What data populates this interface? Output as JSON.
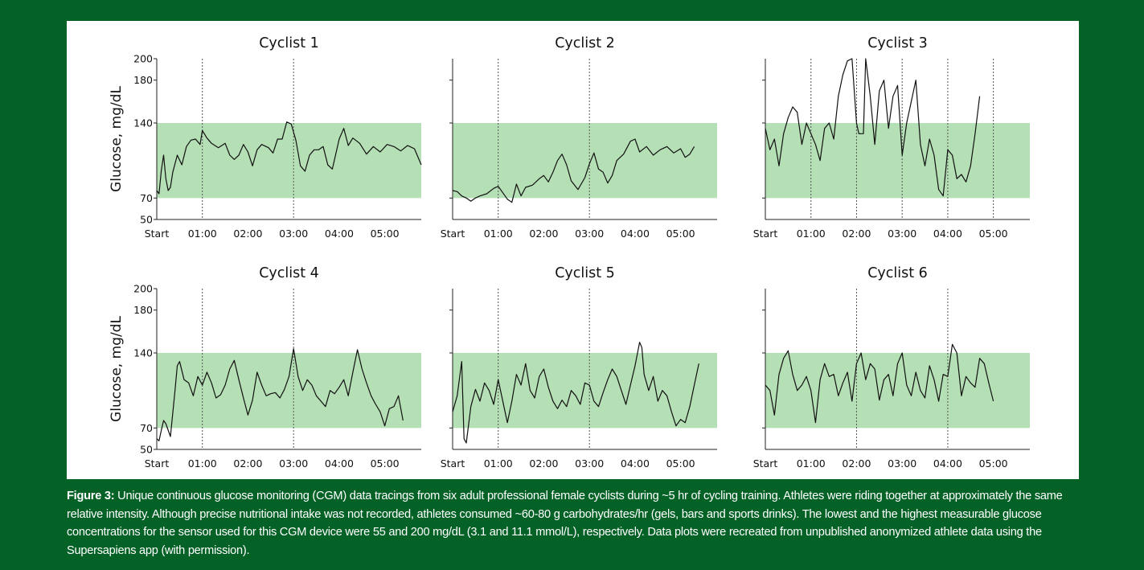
{
  "caption": {
    "label": "Figure 3:",
    "text": " Unique continuous glucose monitoring (CGM) data tracings from six adult professional female cyclists during ~5 hr of cycling training. Athletes were riding together at approximately the same relative intensity. Although precise nutritional intake was not recorded, athletes consumed ~60-80 g carbohydrates/hr (gels, bars and sports drinks). The lowest and the highest measurable glucose concentrations for the sensor used for this CGM device were 55 and 200 mg/dL (3.1 and 11.1 mmol/L), respectively. Data plots were recreated from unpublished anonymized athlete data using the Supersapiens app (with permission)."
  },
  "colors": {
    "background": "#046227",
    "panel": "#ffffff",
    "target_band": "#b5dfb5",
    "trace": "#111111"
  },
  "chart_data": [
    {
      "type": "line",
      "title": "Cyclist 1",
      "ylabel": "Glucose, mg/dL",
      "yticks": [
        50,
        70,
        140,
        180,
        200
      ],
      "ylim": [
        50,
        200
      ],
      "xlim": [
        0,
        5.8
      ],
      "xticks": [
        0,
        1,
        2,
        3,
        4,
        5
      ],
      "xtick_labels": [
        "Start",
        "01:00",
        "02:00",
        "03:00",
        "04:00",
        "05:00"
      ],
      "target_range": [
        70,
        140
      ],
      "gridlines_x": [
        1,
        3
      ],
      "series": [
        {
          "x": [
            0,
            0.05,
            0.1,
            0.15,
            0.2,
            0.25,
            0.3,
            0.35,
            0.45,
            0.55,
            0.65,
            0.75,
            0.85,
            0.95,
            1.0,
            1.1,
            1.2,
            1.35,
            1.5,
            1.6,
            1.7,
            1.8,
            1.9,
            2.0,
            2.1,
            2.2,
            2.3,
            2.45,
            2.55,
            2.65,
            2.75,
            2.85,
            2.95,
            3.05,
            3.15,
            3.25,
            3.35,
            3.45,
            3.55,
            3.65,
            3.75,
            3.85,
            4.0,
            4.1,
            4.2,
            4.3,
            4.45,
            4.6,
            4.75,
            4.9,
            5.05,
            5.2,
            5.35,
            5.5,
            5.65,
            5.8
          ],
          "y": [
            77,
            74,
            96,
            110,
            88,
            77,
            80,
            94,
            110,
            101,
            118,
            124,
            125,
            120,
            133,
            126,
            121,
            117,
            121,
            110,
            106,
            110,
            120,
            113,
            100,
            115,
            120,
            117,
            112,
            125,
            125,
            141,
            139,
            124,
            100,
            95,
            110,
            115,
            115,
            118,
            101,
            97,
            125,
            135,
            119,
            126,
            121,
            111,
            118,
            113,
            120,
            118,
            114,
            119,
            116,
            101
          ]
        }
      ]
    },
    {
      "type": "line",
      "title": "Cyclist 2",
      "ylim": [
        50,
        200
      ],
      "xlim": [
        0,
        5.8
      ],
      "xticks": [
        0,
        1,
        2,
        3,
        4,
        5
      ],
      "xtick_labels": [
        "Start",
        "01:00",
        "02:00",
        "03:00",
        "04:00",
        "05:00"
      ],
      "target_range": [
        70,
        140
      ],
      "gridlines_x": [
        1,
        3
      ],
      "series": [
        {
          "x": [
            0,
            0.1,
            0.2,
            0.3,
            0.4,
            0.5,
            0.6,
            0.75,
            0.9,
            1.0,
            1.1,
            1.2,
            1.3,
            1.4,
            1.5,
            1.6,
            1.75,
            1.9,
            2.0,
            2.1,
            2.2,
            2.3,
            2.4,
            2.5,
            2.6,
            2.75,
            2.9,
            3.0,
            3.1,
            3.2,
            3.3,
            3.4,
            3.5,
            3.6,
            3.75,
            3.9,
            4.0,
            4.1,
            4.25,
            4.4,
            4.55,
            4.7,
            4.85,
            5.0,
            5.1,
            5.2,
            5.3
          ],
          "y": [
            77,
            76,
            72,
            70,
            67,
            70,
            72,
            74,
            79,
            81,
            75,
            69,
            66,
            83,
            72,
            80,
            82,
            88,
            91,
            85,
            94,
            105,
            111,
            101,
            86,
            78,
            89,
            102,
            112,
            97,
            94,
            84,
            91,
            105,
            111,
            123,
            125,
            113,
            118,
            110,
            115,
            118,
            112,
            116,
            108,
            111,
            118
          ]
        }
      ]
    },
    {
      "type": "line",
      "title": "Cyclist 3",
      "ylim": [
        50,
        200
      ],
      "xlim": [
        0,
        5.8
      ],
      "xticks": [
        0,
        1,
        2,
        3,
        4,
        5
      ],
      "xtick_labels": [
        "Start",
        "01:00",
        "02:00",
        "03:00",
        "04:00",
        "05:00"
      ],
      "target_range": [
        70,
        140
      ],
      "gridlines_x": [
        1,
        2,
        3,
        4,
        5
      ],
      "series": [
        {
          "x": [
            0,
            0.1,
            0.2,
            0.3,
            0.4,
            0.5,
            0.6,
            0.7,
            0.8,
            0.9,
            1.0,
            1.1,
            1.2,
            1.3,
            1.4,
            1.5,
            1.6,
            1.7,
            1.8,
            1.9,
            2.0,
            2.05,
            2.15,
            2.2,
            2.3,
            2.4,
            2.5,
            2.6,
            2.7,
            2.8,
            2.9,
            3.0,
            3.1,
            3.2,
            3.3,
            3.4,
            3.5,
            3.6,
            3.7,
            3.8,
            3.9,
            4.0,
            4.1,
            4.2,
            4.3,
            4.4,
            4.5,
            4.6,
            4.7
          ],
          "y": [
            135,
            115,
            125,
            100,
            130,
            145,
            155,
            150,
            120,
            140,
            130,
            120,
            105,
            135,
            140,
            125,
            165,
            185,
            198,
            200,
            140,
            130,
            130,
            200,
            165,
            120,
            170,
            180,
            135,
            165,
            175,
            110,
            140,
            160,
            180,
            120,
            100,
            125,
            110,
            78,
            72,
            115,
            110,
            88,
            92,
            85,
            100,
            130,
            165
          ]
        }
      ]
    },
    {
      "type": "line",
      "title": "Cyclist 4",
      "ylabel": "Glucose, mg/dL",
      "yticks": [
        50,
        70,
        140,
        180,
        200
      ],
      "ylim": [
        50,
        200
      ],
      "xlim": [
        0,
        5.8
      ],
      "xticks": [
        0,
        1,
        2,
        3,
        4,
        5
      ],
      "xtick_labels": [
        "Start",
        "01:00",
        "02:00",
        "03:00",
        "04:00",
        "05:00"
      ],
      "target_range": [
        70,
        140
      ],
      "gridlines_x": [
        1,
        3
      ],
      "series": [
        {
          "x": [
            0,
            0.05,
            0.1,
            0.15,
            0.2,
            0.3,
            0.4,
            0.45,
            0.5,
            0.6,
            0.7,
            0.8,
            0.9,
            1.0,
            1.1,
            1.2,
            1.3,
            1.4,
            1.5,
            1.6,
            1.7,
            1.8,
            1.9,
            2.0,
            2.1,
            2.2,
            2.3,
            2.4,
            2.5,
            2.6,
            2.7,
            2.8,
            2.9,
            3.0,
            3.1,
            3.2,
            3.3,
            3.4,
            3.5,
            3.6,
            3.7,
            3.8,
            3.9,
            4.0,
            4.1,
            4.2,
            4.3,
            4.4,
            4.5,
            4.6,
            4.7,
            4.8,
            4.9,
            5.0,
            5.1,
            5.2,
            5.3,
            5.4
          ],
          "y": [
            60,
            58,
            68,
            77,
            74,
            62,
            105,
            128,
            132,
            115,
            112,
            100,
            118,
            110,
            122,
            112,
            98,
            101,
            110,
            125,
            133,
            115,
            98,
            82,
            96,
            122,
            110,
            100,
            102,
            103,
            98,
            106,
            118,
            144,
            118,
            105,
            115,
            110,
            100,
            95,
            90,
            105,
            102,
            108,
            115,
            100,
            122,
            143,
            125,
            112,
            100,
            92,
            85,
            72,
            88,
            90,
            100,
            77
          ]
        }
      ]
    },
    {
      "type": "line",
      "title": "Cyclist 5",
      "ylim": [
        50,
        200
      ],
      "xlim": [
        0,
        5.8
      ],
      "xticks": [
        0,
        1,
        2,
        3,
        4,
        5
      ],
      "xtick_labels": [
        "Start",
        "01:00",
        "02:00",
        "03:00",
        "04:00",
        "05:00"
      ],
      "target_range": [
        70,
        140
      ],
      "gridlines_x": [
        1,
        3
      ],
      "series": [
        {
          "x": [
            0,
            0.1,
            0.2,
            0.25,
            0.3,
            0.4,
            0.5,
            0.6,
            0.7,
            0.8,
            0.9,
            1.0,
            1.1,
            1.2,
            1.3,
            1.4,
            1.5,
            1.6,
            1.7,
            1.8,
            1.9,
            2.0,
            2.1,
            2.2,
            2.3,
            2.4,
            2.5,
            2.6,
            2.7,
            2.8,
            2.9,
            3.0,
            3.1,
            3.2,
            3.3,
            3.4,
            3.5,
            3.6,
            3.7,
            3.8,
            3.9,
            4.0,
            4.1,
            4.15,
            4.2,
            4.3,
            4.4,
            4.5,
            4.6,
            4.7,
            4.8,
            4.9,
            5.0,
            5.1,
            5.2,
            5.3,
            5.4
          ],
          "y": [
            85,
            100,
            132,
            60,
            56,
            90,
            106,
            95,
            112,
            105,
            92,
            115,
            95,
            75,
            95,
            120,
            110,
            130,
            105,
            98,
            118,
            125,
            108,
            95,
            88,
            96,
            90,
            105,
            100,
            92,
            112,
            110,
            95,
            90,
            103,
            115,
            125,
            118,
            105,
            92,
            110,
            128,
            150,
            145,
            120,
            105,
            118,
            95,
            105,
            100,
            85,
            72,
            78,
            75,
            90,
            110,
            130
          ]
        }
      ]
    },
    {
      "type": "line",
      "title": "Cyclist 6",
      "ylim": [
        50,
        200
      ],
      "xlim": [
        0,
        5.8
      ],
      "xticks": [
        0,
        1,
        2,
        3,
        4,
        5
      ],
      "xtick_labels": [
        "Start",
        "01:00",
        "02:00",
        "03:00",
        "04:00",
        "05:00"
      ],
      "target_range": [
        70,
        140
      ],
      "gridlines_x": [
        2,
        4
      ],
      "series": [
        {
          "x": [
            0,
            0.1,
            0.2,
            0.3,
            0.4,
            0.5,
            0.6,
            0.7,
            0.8,
            0.9,
            1.0,
            1.1,
            1.2,
            1.3,
            1.4,
            1.5,
            1.6,
            1.7,
            1.8,
            1.9,
            2.0,
            2.1,
            2.2,
            2.3,
            2.4,
            2.5,
            2.6,
            2.7,
            2.8,
            2.9,
            3.0,
            3.1,
            3.2,
            3.3,
            3.4,
            3.5,
            3.6,
            3.7,
            3.8,
            3.9,
            4.0,
            4.1,
            4.2,
            4.3,
            4.4,
            4.5,
            4.6,
            4.7,
            4.8,
            4.9,
            5.0
          ],
          "y": [
            110,
            105,
            82,
            120,
            135,
            142,
            120,
            105,
            110,
            118,
            105,
            75,
            115,
            130,
            118,
            120,
            100,
            112,
            122,
            95,
            130,
            140,
            115,
            130,
            125,
            96,
            115,
            120,
            100,
            130,
            140,
            110,
            100,
            122,
            105,
            98,
            128,
            115,
            95,
            120,
            118,
            148,
            140,
            100,
            118,
            112,
            108,
            135,
            130,
            112,
            95
          ]
        }
      ]
    }
  ]
}
